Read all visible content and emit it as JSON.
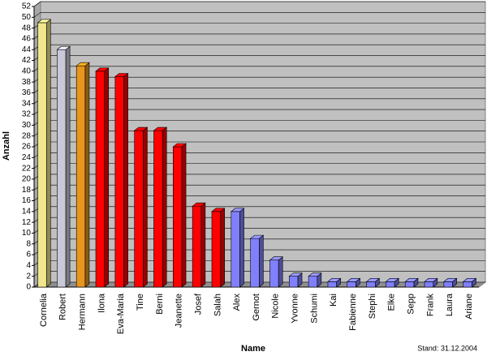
{
  "chart_data": {
    "type": "bar3d",
    "x_label": "Name",
    "y_label": "Anzahl",
    "annotation": "Stand: 31.12.2004",
    "categories": [
      "Cornelia",
      "Robert",
      "Hermann",
      "Ilona",
      "Eva-Maria",
      "Tine",
      "Berni",
      "Jeanette",
      "Josef",
      "Salah",
      "Alex",
      "Gernot",
      "Nicole",
      "Yvonne",
      "Schumi",
      "Kai",
      "Fabienne",
      "Stephi",
      "Elke",
      "Sepp",
      "Frank",
      "Laura",
      "Ariane"
    ],
    "values": [
      49,
      44,
      41,
      40,
      39,
      29,
      29,
      26,
      15,
      14,
      14,
      9,
      5,
      2,
      2,
      1,
      1,
      1,
      1,
      1,
      1,
      1,
      1
    ],
    "colors": [
      "#f0e68c",
      "#c8c8d8",
      "#e8961e",
      "#ff0000",
      "#ff0000",
      "#ff0000",
      "#ff0000",
      "#ff0000",
      "#ff0000",
      "#ff0000",
      "#8080ff",
      "#8080ff",
      "#8080ff",
      "#8080ff",
      "#8080ff",
      "#8080ff",
      "#8080ff",
      "#8080ff",
      "#8080ff",
      "#8080ff",
      "#8080ff",
      "#8080ff",
      "#8080ff"
    ],
    "ylim": [
      0,
      52
    ],
    "yticks": [
      0,
      2,
      4,
      6,
      8,
      10,
      12,
      14,
      16,
      18,
      20,
      22,
      24,
      26,
      28,
      30,
      32,
      34,
      36,
      38,
      40,
      42,
      44,
      46,
      48,
      50,
      52
    ],
    "grid": true
  }
}
